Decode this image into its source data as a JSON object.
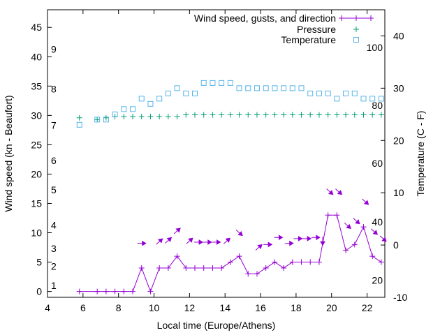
{
  "chart_data": {
    "type": "line",
    "xlabel": "Local time (Europe/Athens)",
    "ylabel": "Wind speed (kn - Beaufort)",
    "y2label": "Temperature (C - F)",
    "xlim": [
      4,
      23
    ],
    "ylim": [
      -1,
      48
    ],
    "y2lim": [
      -10,
      45
    ],
    "xticks": [
      4,
      6,
      8,
      10,
      12,
      14,
      16,
      18,
      20,
      22
    ],
    "yticks": [
      0,
      5,
      10,
      15,
      20,
      25,
      30,
      35,
      40,
      45
    ],
    "y2ticks": [
      -10,
      0,
      10,
      20,
      30,
      40
    ],
    "beaufort_labels": [
      {
        "label": "1",
        "y": 1
      },
      {
        "label": "2",
        "y": 4.3
      },
      {
        "label": "3",
        "y": 7.3
      },
      {
        "label": "4",
        "y": 11.3
      },
      {
        "label": "5",
        "y": 17.3
      },
      {
        "label": "6",
        "y": 22.3
      },
      {
        "label": "7",
        "y": 28.3
      },
      {
        "label": "8",
        "y": 34.5
      },
      {
        "label": "9",
        "y": 41.3
      }
    ],
    "fahrenheit_labels": [
      {
        "label": "20",
        "t": -6.7
      },
      {
        "label": "40",
        "t": 4.4
      },
      {
        "label": "60",
        "t": 15.6
      },
      {
        "label": "80",
        "t": 26.7
      },
      {
        "label": "100",
        "t": 37.8
      }
    ],
    "legend": [
      {
        "label": "Wind speed, gusts, and direction",
        "color": "#9400d3"
      },
      {
        "label": "Pressure",
        "color": "#009e73"
      },
      {
        "label": "Temperature",
        "color": "#56b4e9"
      }
    ],
    "legend_position": "top-right",
    "series": [
      {
        "name": "Wind speed, gusts, and direction",
        "color": "#9400d3",
        "x": [
          5.8,
          6.8,
          7.3,
          7.8,
          8.3,
          8.8,
          9.3,
          9.8,
          10.3,
          10.8,
          11.3,
          11.8,
          12.3,
          12.8,
          13.3,
          13.8,
          14.3,
          14.8,
          15.3,
          15.8,
          16.3,
          16.8,
          17.3,
          17.8,
          18.3,
          18.8,
          19.3,
          19.8,
          20.3,
          20.8,
          21.3,
          21.8,
          22.3,
          22.8
        ],
        "y": [
          0,
          0,
          0,
          0,
          0,
          0,
          4,
          0,
          4,
          4,
          6,
          4,
          4,
          4,
          4,
          4,
          5,
          6,
          3,
          3,
          4,
          5,
          4,
          5,
          5,
          5,
          5,
          13,
          13,
          7,
          8,
          11,
          6,
          5
        ]
      },
      {
        "name": "Pressure",
        "color": "#009e73",
        "x": [
          5.8,
          6.8,
          7.3,
          7.8,
          8.3,
          8.8,
          9.3,
          9.8,
          10.3,
          10.8,
          11.3,
          11.8,
          12.3,
          12.8,
          13.3,
          13.8,
          14.3,
          14.8,
          15.3,
          15.8,
          16.3,
          16.8,
          17.3,
          17.8,
          18.3,
          18.8,
          19.3,
          19.8,
          20.3,
          20.8,
          21.3,
          21.8,
          22.3,
          22.8
        ],
        "y": [
          29.6,
          29.3,
          29.6,
          29.8,
          29.8,
          29.8,
          29.8,
          29.8,
          29.8,
          29.8,
          29.8,
          30.1,
          30.1,
          30.1,
          30.1,
          30.1,
          30.1,
          30.1,
          30.1,
          30.1,
          30.1,
          30.1,
          30.1,
          30.1,
          30.1,
          30.1,
          30.1,
          30.1,
          30.1,
          30.1,
          30.1,
          30.1,
          30.1,
          30.1
        ]
      },
      {
        "name": "Temperature",
        "color": "#56b4e9",
        "x": [
          5.8,
          6.8,
          7.3,
          7.8,
          8.3,
          8.8,
          9.3,
          9.8,
          10.3,
          10.8,
          11.3,
          11.8,
          12.3,
          12.8,
          13.3,
          13.8,
          14.3,
          14.8,
          15.3,
          15.8,
          16.3,
          16.8,
          17.3,
          17.8,
          18.3,
          18.8,
          19.3,
          19.8,
          20.3,
          20.8,
          21.3,
          21.8,
          22.3,
          22.8
        ],
        "y": [
          23,
          24,
          24,
          25,
          26,
          26,
          28,
          27,
          28,
          29,
          30,
          29,
          29,
          31,
          31,
          31,
          31,
          30,
          30,
          30,
          30,
          30,
          30,
          30,
          30,
          29,
          29,
          29,
          28,
          29,
          29,
          28,
          28,
          28
        ]
      }
    ],
    "wind_arrows": [
      {
        "x": 9.3,
        "y": 8.2,
        "dir": "right"
      },
      {
        "x": 10.3,
        "y": 8.5,
        "dir": "up-right"
      },
      {
        "x": 10.8,
        "y": 8.7,
        "dir": "up-right"
      },
      {
        "x": 11.3,
        "y": 10.3,
        "dir": "up-right"
      },
      {
        "x": 12.0,
        "y": 8.6,
        "dir": "up-right"
      },
      {
        "x": 12.5,
        "y": 8.4,
        "dir": "right"
      },
      {
        "x": 13.0,
        "y": 8.4,
        "dir": "right"
      },
      {
        "x": 13.5,
        "y": 8.4,
        "dir": "right"
      },
      {
        "x": 14.1,
        "y": 8.6,
        "dir": "up-right"
      },
      {
        "x": 14.8,
        "y": 10.0,
        "dir": "down-right"
      },
      {
        "x": 15.9,
        "y": 7.5,
        "dir": "up-right"
      },
      {
        "x": 16.4,
        "y": 8.0,
        "dir": "right"
      },
      {
        "x": 17.0,
        "y": 9.2,
        "dir": "right"
      },
      {
        "x": 17.6,
        "y": 8.2,
        "dir": "right"
      },
      {
        "x": 18.1,
        "y": 9.0,
        "dir": "right"
      },
      {
        "x": 18.6,
        "y": 9.0,
        "dir": "right"
      },
      {
        "x": 19.1,
        "y": 9.2,
        "dir": "right"
      },
      {
        "x": 19.5,
        "y": 8.6,
        "dir": "down"
      },
      {
        "x": 19.9,
        "y": 17.0,
        "dir": "down-right"
      },
      {
        "x": 20.4,
        "y": 17.0,
        "dir": "down-right"
      },
      {
        "x": 20.9,
        "y": 11.2,
        "dir": "down-right"
      },
      {
        "x": 21.4,
        "y": 12.0,
        "dir": "down-right"
      },
      {
        "x": 21.9,
        "y": 15.3,
        "dir": "down-right"
      },
      {
        "x": 22.4,
        "y": 10.2,
        "dir": "down-right"
      },
      {
        "x": 22.9,
        "y": 9.0,
        "dir": "down-right"
      }
    ]
  }
}
